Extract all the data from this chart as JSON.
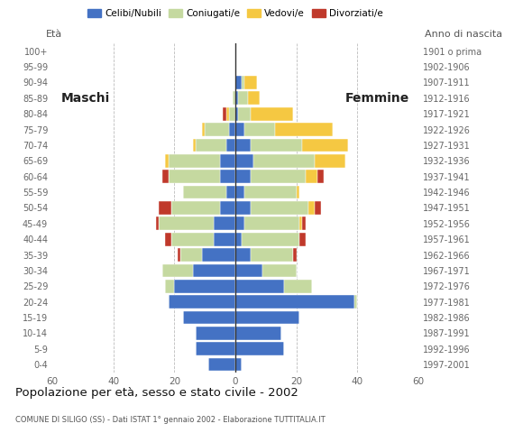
{
  "age_groups": [
    "0-4",
    "5-9",
    "10-14",
    "15-19",
    "20-24",
    "25-29",
    "30-34",
    "35-39",
    "40-44",
    "45-49",
    "50-54",
    "55-59",
    "60-64",
    "65-69",
    "70-74",
    "75-79",
    "80-84",
    "85-89",
    "90-94",
    "95-99",
    "100+"
  ],
  "birth_years": [
    "1997-2001",
    "1992-1996",
    "1987-1991",
    "1982-1986",
    "1977-1981",
    "1972-1976",
    "1967-1971",
    "1962-1966",
    "1957-1961",
    "1952-1956",
    "1947-1951",
    "1942-1946",
    "1937-1941",
    "1932-1936",
    "1927-1931",
    "1922-1926",
    "1917-1921",
    "1912-1916",
    "1907-1911",
    "1902-1906",
    "1901 o prima"
  ],
  "males": {
    "celibe": [
      9,
      13,
      13,
      17,
      22,
      20,
      14,
      11,
      7,
      7,
      5,
      3,
      5,
      5,
      3,
      2,
      0,
      0,
      0,
      0,
      0
    ],
    "coniugato": [
      0,
      0,
      0,
      0,
      0,
      3,
      10,
      7,
      14,
      18,
      16,
      14,
      17,
      17,
      10,
      8,
      2,
      1,
      0,
      0,
      0
    ],
    "vedovo": [
      0,
      0,
      0,
      0,
      0,
      0,
      0,
      0,
      0,
      0,
      0,
      0,
      0,
      1,
      1,
      1,
      1,
      0,
      0,
      0,
      0
    ],
    "divorziato": [
      0,
      0,
      0,
      0,
      0,
      0,
      0,
      1,
      2,
      1,
      4,
      0,
      2,
      0,
      0,
      0,
      1,
      0,
      0,
      0,
      0
    ]
  },
  "females": {
    "nubile": [
      2,
      16,
      15,
      21,
      39,
      16,
      9,
      5,
      2,
      3,
      5,
      3,
      5,
      6,
      5,
      3,
      1,
      1,
      2,
      0,
      0
    ],
    "coniugata": [
      0,
      0,
      0,
      0,
      1,
      9,
      11,
      14,
      19,
      18,
      19,
      17,
      18,
      20,
      17,
      10,
      4,
      3,
      1,
      0,
      0
    ],
    "vedova": [
      0,
      0,
      0,
      0,
      0,
      0,
      0,
      0,
      0,
      1,
      2,
      1,
      4,
      10,
      15,
      19,
      14,
      4,
      4,
      0,
      0
    ],
    "divorziata": [
      0,
      0,
      0,
      0,
      0,
      0,
      0,
      1,
      2,
      1,
      2,
      0,
      2,
      0,
      0,
      0,
      0,
      0,
      0,
      0,
      0
    ]
  },
  "colors": {
    "celibe_nubile": "#4472C4",
    "coniugato_coniugata": "#C5D9A0",
    "vedovo_vedova": "#F5C842",
    "divorziato_divorziata": "#C0392B"
  },
  "title": "Popolazione per età, sesso e stato civile - 2002",
  "subtitle": "COMUNE DI SILIGO (SS) - Dati ISTAT 1° gennaio 2002 - Elaborazione TUTTITALIA.IT",
  "xlabel_left": "Maschi",
  "xlabel_right": "Femmine",
  "ylabel_left": "Età",
  "ylabel_right": "Anno di nascita",
  "xlim": 60,
  "legend_labels": [
    "Celibi/Nubili",
    "Coniugati/e",
    "Vedovi/e",
    "Divorziati/e"
  ]
}
